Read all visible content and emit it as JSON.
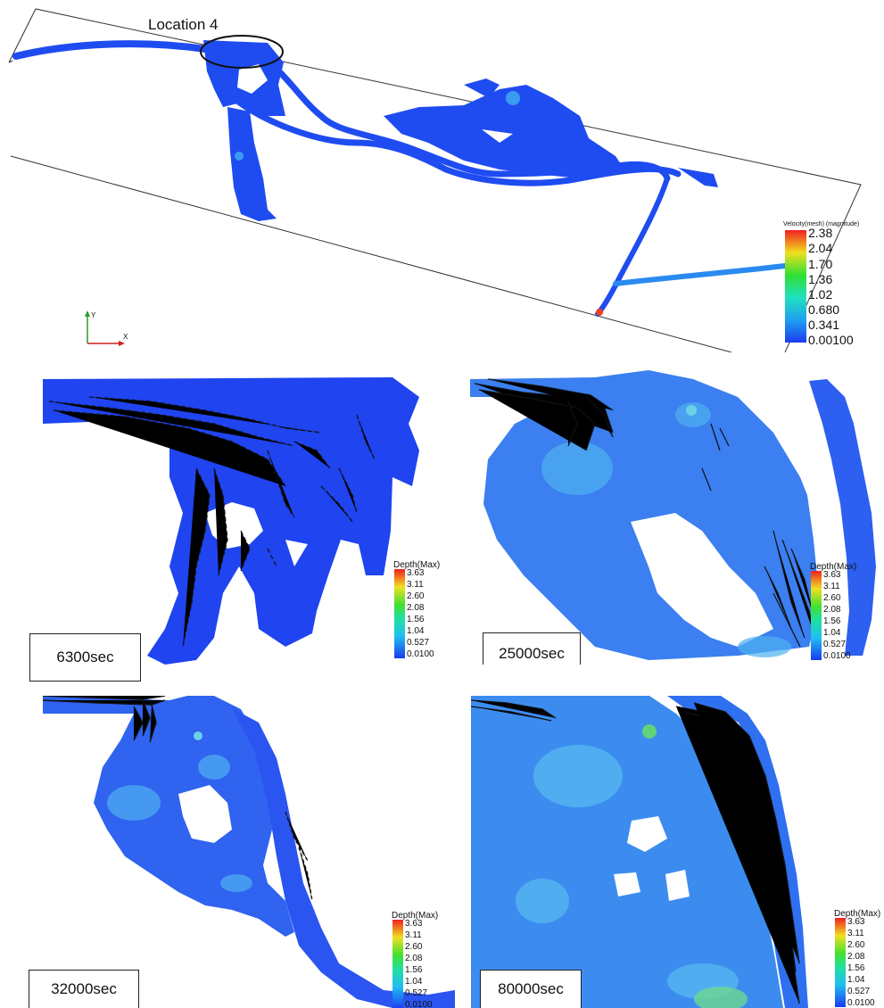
{
  "top": {
    "location_label": "Location 4",
    "colorbar": {
      "title": "Velocity(mesh) (magnitude)",
      "ticks": [
        "2.38",
        "2.04",
        "1.70",
        "1.36",
        "1.02",
        "0.680",
        "0.341",
        "0.00100"
      ]
    },
    "axes": {
      "y_label": "Y",
      "x_label": "X"
    }
  },
  "panels": [
    {
      "time_label": "6300sec",
      "colorbar": {
        "title": "Depth(Max)",
        "ticks": [
          "3.63",
          "3.11",
          "2.60",
          "2.08",
          "1.56",
          "1.04",
          "0.527",
          "0.0100"
        ]
      }
    },
    {
      "time_label": "25000sec",
      "colorbar": {
        "title": "Depth(Max)",
        "ticks": [
          "3.63",
          "3.11",
          "2.60",
          "2.08",
          "1.56",
          "1.04",
          "0.527",
          "0.0100"
        ]
      }
    },
    {
      "time_label": "32000sec",
      "colorbar": {
        "title": "Depth(Max)",
        "ticks": [
          "3.63",
          "3.11",
          "2.60",
          "2.08",
          "1.56",
          "1.04",
          "0.527",
          "0.0100"
        ]
      }
    },
    {
      "time_label": "80000sec",
      "colorbar": {
        "title": "Depth(Max)",
        "ticks": [
          "3.63",
          "3.11",
          "2.60",
          "2.08",
          "1.56",
          "1.04",
          "0.527",
          "0.0100"
        ]
      }
    }
  ],
  "colors": {
    "water_deep_blue": "#1a44f0",
    "water_light": "#3aa0f0",
    "arrow": "#111111"
  }
}
